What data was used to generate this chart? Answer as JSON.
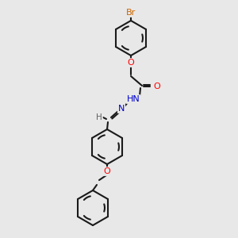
{
  "background_color": "#e8e8e8",
  "bond_color": "#1a1a1a",
  "atom_colors": {
    "Br": "#cc6600",
    "O": "#ff0000",
    "N": "#0000cd",
    "H": "#606060",
    "C": "#1a1a1a"
  },
  "figsize": [
    3.0,
    3.0
  ],
  "dpi": 100,
  "ring_r": 22,
  "lw": 1.5
}
